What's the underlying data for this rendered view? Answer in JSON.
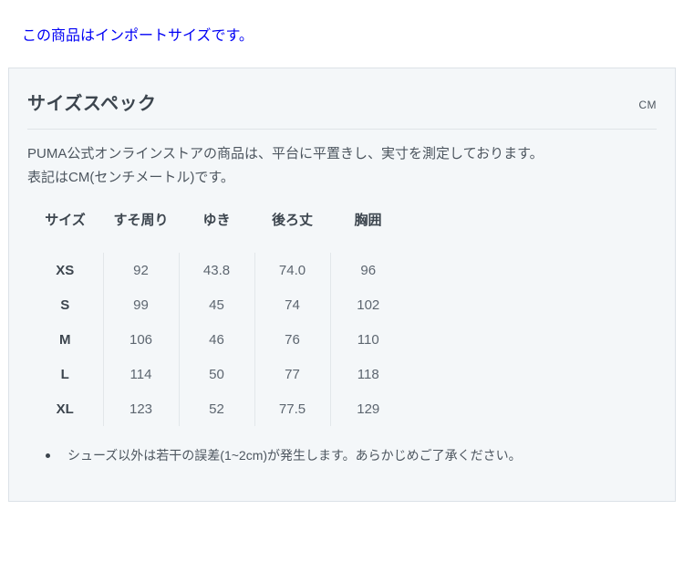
{
  "page": {
    "import_note": "この商品はインポートサイズです。"
  },
  "panel": {
    "title": "サイズスペック",
    "unit": "CM",
    "description_line1": "PUMA公式オンラインストアの商品は、平台に平置きし、実寸を測定しております。",
    "description_line2": "表記はCM(センチメートル)です。",
    "note": "シューズ以外は若干の誤差(1~2cm)が発生します。あらかじめご了承ください。"
  },
  "size_table": {
    "columns": [
      "サイズ",
      "すそ周り",
      "ゆき",
      "後ろ丈",
      "胸囲"
    ],
    "rows": [
      {
        "size": "XS",
        "values": [
          "92",
          "43.8",
          "74.0",
          "96"
        ]
      },
      {
        "size": "S",
        "values": [
          "99",
          "45",
          "74",
          "102"
        ]
      },
      {
        "size": "M",
        "values": [
          "106",
          "46",
          "76",
          "110"
        ]
      },
      {
        "size": "L",
        "values": [
          "114",
          "50",
          "77",
          "118"
        ]
      },
      {
        "size": "XL",
        "values": [
          "123",
          "52",
          "77.5",
          "129"
        ]
      }
    ]
  },
  "colors": {
    "note_blue": "#0000f5",
    "panel_background": "#f4f7f9",
    "panel_border": "#dce2e7",
    "heading_text": "#3c454e",
    "body_text": "#4d565f",
    "value_text": "#5d6670"
  }
}
